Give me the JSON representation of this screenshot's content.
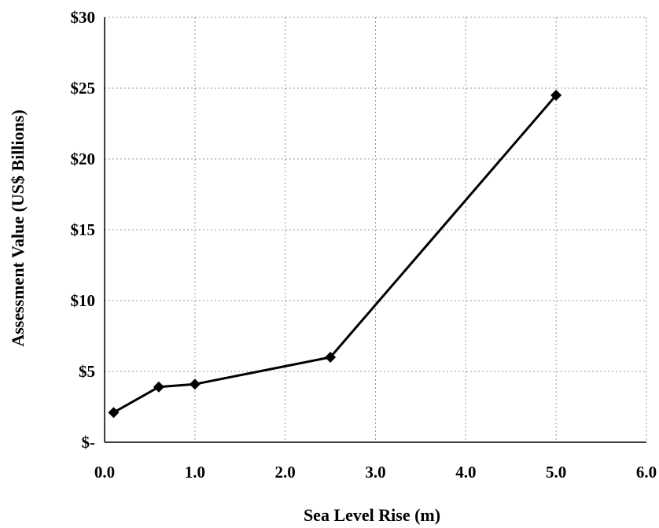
{
  "chart_data": {
    "type": "line",
    "title": "",
    "xlabel": "Sea Level Rise (m)",
    "ylabel": "Assessment Value (US$ Billions)",
    "xlim": [
      0.0,
      6.0
    ],
    "ylim": [
      0,
      30
    ],
    "x_ticks": [
      "0.0",
      "1.0",
      "2.0",
      "3.0",
      "4.0",
      "5.0",
      "6.0"
    ],
    "y_ticks": [
      "$-",
      "$5",
      "$10",
      "$15",
      "$20",
      "$25",
      "$30"
    ],
    "grid": true,
    "series": [
      {
        "x": [
          0.1,
          0.6,
          1.0,
          2.5,
          5.0
        ],
        "y": [
          2.1,
          3.9,
          4.1,
          6.0,
          24.5
        ]
      }
    ],
    "marker": "diamond",
    "line_color": "#000000"
  }
}
